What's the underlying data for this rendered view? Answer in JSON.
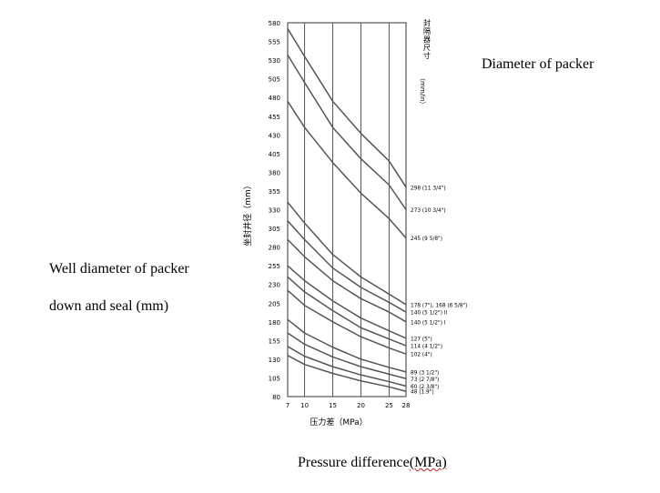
{
  "chart_data": {
    "type": "line",
    "x": [
      7,
      10,
      15,
      20,
      25,
      28
    ],
    "x_tick_labels": [
      "7",
      "10",
      "15",
      "20",
      "25",
      "28"
    ],
    "xlabel_cn": "压力差（MPa）",
    "ylabel_cn": "坐封井径（mm）",
    "ylim": [
      80,
      580
    ],
    "y_ticks": [
      80,
      105,
      130,
      155,
      180,
      205,
      230,
      255,
      280,
      305,
      330,
      355,
      380,
      405,
      430,
      455,
      480,
      505,
      530,
      555,
      580
    ],
    "legend_title_cn": "封隔器尺寸",
    "legend_unit": "（mm/in）",
    "grid": true,
    "series": [
      {
        "name": "298 (11 3/4\")",
        "values": [
          572,
          535,
          475,
          432,
          395,
          360
        ]
      },
      {
        "name": "273 (10 3/4\")",
        "values": [
          537,
          500,
          440,
          398,
          363,
          330
        ]
      },
      {
        "name": "245 (9 5/8\")",
        "values": [
          475,
          440,
          393,
          352,
          318,
          292
        ]
      },
      {
        "name": "178 (7\"), 168 (6 5/8\")",
        "values": [
          340,
          312,
          270,
          240,
          217,
          203
        ]
      },
      {
        "name": "140 (5 1/2\") II",
        "values": [
          315,
          290,
          252,
          226,
          206,
          193
        ]
      },
      {
        "name": "140 (5 1/2\") I",
        "values": [
          290,
          267,
          235,
          211,
          193,
          180
        ]
      },
      {
        "name": "127 (5\")",
        "values": [
          255,
          235,
          208,
          185,
          168,
          158
        ]
      },
      {
        "name": "114 (4 1/2\")",
        "values": [
          240,
          220,
          195,
          172,
          157,
          148
        ]
      },
      {
        "name": "102 (4\")",
        "values": [
          222,
          202,
          180,
          160,
          145,
          137
        ]
      },
      {
        "name": "89 (3 1/2\")",
        "values": [
          183,
          165,
          146,
          130,
          119,
          113
        ]
      },
      {
        "name": "73 (2 7/8\")",
        "values": [
          165,
          150,
          133,
          120,
          110,
          104
        ]
      },
      {
        "name": "60 (2 3/8\")",
        "values": [
          147,
          134,
          120,
          109,
          100,
          94
        ]
      },
      {
        "name": "48 (1.9\")",
        "values": [
          135,
          123,
          111,
          101,
          93,
          87
        ]
      }
    ]
  },
  "annotations": {
    "diameter_of_packer": "Diameter of packer",
    "well_diameter_line1": "Well diameter of packer",
    "well_diameter_line2": "down and seal (mm)",
    "pressure_difference_main": "Pressure difference",
    "pressure_difference_unit": "(MPa)"
  },
  "colors": {
    "lines": "#555555",
    "grid": "#555555",
    "text": "#000000"
  }
}
